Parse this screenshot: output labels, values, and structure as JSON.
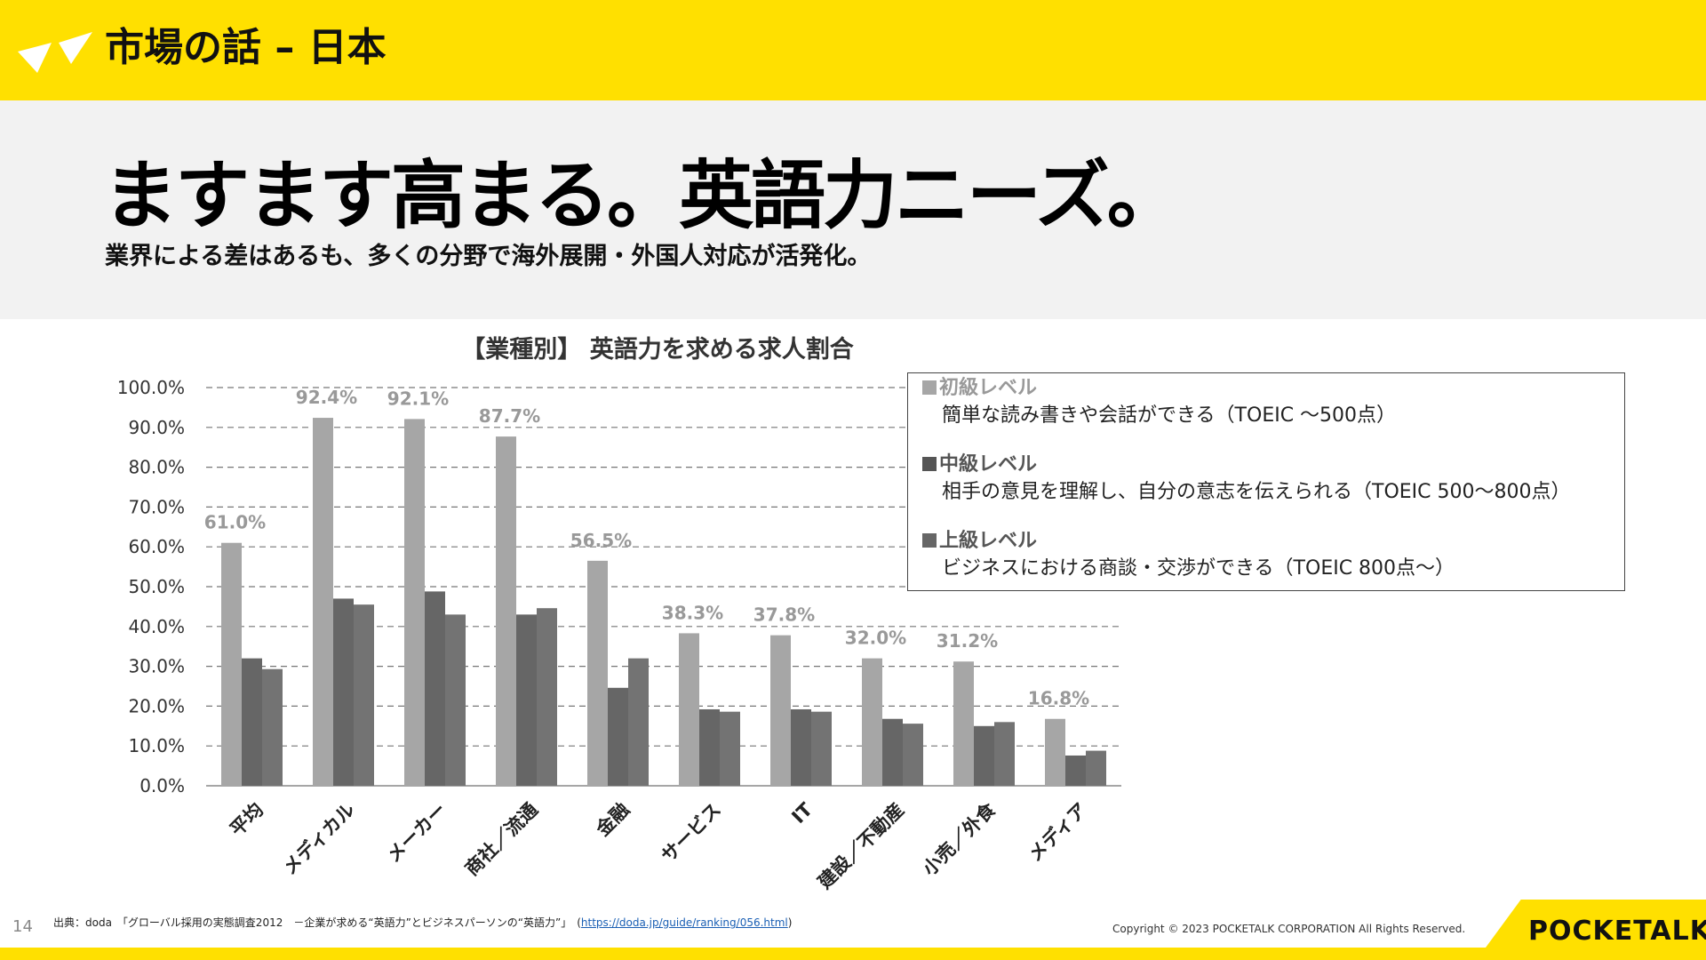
{
  "header": {
    "title": "市場の話 – 日本"
  },
  "hero": {
    "headline": "ますます高まる。英語力ニーズ。",
    "subhead": "業界による差はあるも、多くの分野で海外展開・外国人対応が活発化。"
  },
  "chart_data": {
    "type": "bar",
    "title": "【業種別】 英語力を求める求人割合",
    "categories": [
      "平均",
      "メディカル",
      "メーカー",
      "商社／流通",
      "金融",
      "サービス",
      "IT",
      "建設／不動産",
      "小売／外食",
      "メディア"
    ],
    "series": [
      {
        "name": "初級レベル",
        "color": "#A6A6A6",
        "values": [
          61.0,
          92.4,
          92.1,
          87.7,
          56.5,
          38.3,
          37.8,
          32.0,
          31.2,
          16.8
        ]
      },
      {
        "name": "中級レベル",
        "color": "#666666",
        "values": [
          32.0,
          47.0,
          48.8,
          43.0,
          24.6,
          19.2,
          19.2,
          16.8,
          15.0,
          7.6
        ]
      },
      {
        "name": "上級レベル",
        "color": "#737373",
        "values": [
          29.3,
          45.5,
          43.0,
          44.6,
          32.0,
          18.6,
          18.6,
          15.6,
          16.0,
          8.8
        ]
      }
    ],
    "data_labels": [
      "61.0%",
      "92.4%",
      "92.1%",
      "87.7%",
      "56.5%",
      "38.3%",
      "37.8%",
      "32.0%",
      "31.2%",
      "16.8%"
    ],
    "yticks": [
      "0.0%",
      "10.0%",
      "20.0%",
      "30.0%",
      "40.0%",
      "50.0%",
      "60.0%",
      "70.0%",
      "80.0%",
      "90.0%",
      "100.0%"
    ],
    "ylim": [
      0,
      100
    ],
    "grid": true,
    "legend": "top-right"
  },
  "legend": [
    {
      "name": "初級レベル",
      "desc": "簡単な読み書きや会話ができる（TOEIC ～500点）"
    },
    {
      "name": "中級レベル",
      "desc": "相手の意見を理解し、自分の意志を伝えられる（TOEIC 500～800点）"
    },
    {
      "name": "上級レベル",
      "desc": "ビジネスにおける商談・交渉ができる（TOEIC 800点～）"
    }
  ],
  "footer": {
    "page_number": "14",
    "source": "出典：doda　「グローバル採用の実態調査2012　－企業が求める“英語力”とビジネスパーソンの“英語力”」　(",
    "source_url": "https://doda.jp/guide/ranking/056.html",
    "source_close": ")",
    "copyright": "Copyright © 2023 POCKETALK CORPORATION All Rights Reserved.",
    "brand": "POCKETALK"
  }
}
